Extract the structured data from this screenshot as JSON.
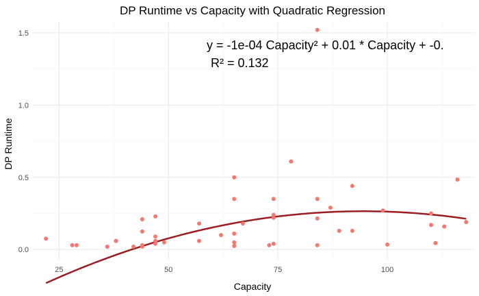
{
  "chart_data": {
    "type": "scatter",
    "title": "DP Runtime vs Capacity with Quadratic Regression",
    "xlabel": "Capacity",
    "ylabel": "DP Runtime",
    "xlim": [
      19,
      120
    ],
    "ylim": [
      -0.07,
      1.58
    ],
    "x_ticks": [
      25,
      50,
      75,
      100
    ],
    "x_tick_labels": [
      "25",
      "50",
      "75",
      "100"
    ],
    "y_ticks": [
      0.0,
      0.5,
      1.0,
      1.5
    ],
    "y_tick_labels": [
      "0.0",
      "0.5",
      "1.0",
      "1.5"
    ],
    "grid": true,
    "colors": {
      "points": "#f8766d",
      "fit": "#9b1c22"
    },
    "points": {
      "x": [
        22,
        28,
        29,
        36,
        38,
        42,
        44,
        44,
        44,
        44,
        47,
        47,
        47,
        47,
        49,
        57,
        57,
        62,
        65,
        65,
        65,
        65,
        65,
        67,
        73,
        74,
        74,
        74,
        74,
        78,
        84,
        84,
        84,
        84,
        87,
        89,
        92,
        92,
        99,
        100,
        110,
        110,
        111,
        113,
        116,
        118
      ],
      "y": [
        0.075,
        0.03,
        0.03,
        0.02,
        0.06,
        0.02,
        0.03,
        0.02,
        0.125,
        0.21,
        0.23,
        0.09,
        0.06,
        0.04,
        0.05,
        0.18,
        0.06,
        0.1,
        0.5,
        0.35,
        0.11,
        0.05,
        0.025,
        0.18,
        0.03,
        0.24,
        0.22,
        0.04,
        0.35,
        0.61,
        1.52,
        0.35,
        0.215,
        0.03,
        0.29,
        0.13,
        0.44,
        0.13,
        0.27,
        0.035,
        0.25,
        0.17,
        0.045,
        0.16,
        0.485,
        0.19
      ]
    },
    "fit": {
      "type": "quadratic",
      "a": -9.46e-05,
      "b": 0.01788,
      "c": -0.5796,
      "x_range": [
        22,
        118
      ]
    },
    "annotation": {
      "equation": "y =  -1e-04  Capacity² +  0.01  * Capacity +  -0.",
      "r_squared": "R² =  0.132"
    }
  }
}
